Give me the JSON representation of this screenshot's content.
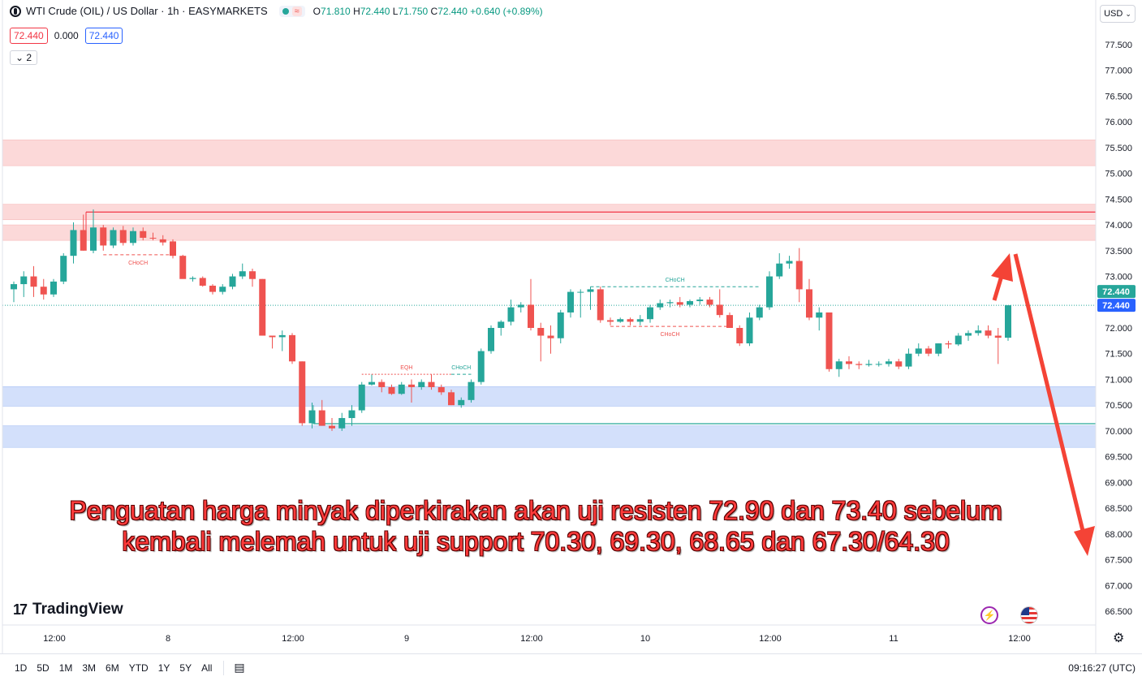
{
  "header": {
    "title": "WTI Crude (OIL) / US Dollar · 1h · EASYMARKETS",
    "ohlc": [
      {
        "k": "O",
        "v": "71.810"
      },
      {
        "k": "H",
        "v": "72.440"
      },
      {
        "k": "L",
        "v": "71.750"
      },
      {
        "k": "C",
        "v": "72.440"
      }
    ],
    "change": "+0.640 (+0.89%)",
    "bid": "72.440",
    "spread": "0.000",
    "ask": "72.440",
    "indicators_collapsed": "2"
  },
  "currency_button": "USD",
  "brand": "TradingView",
  "annotation": {
    "line1": "Penguatan harga minyak diperkirakan akan uji resisten 72.90 dan 73.40 sebelum",
    "line2": "kembali melemah untuk uji support 70.30, 69.30, 68.65 dan 67.30/64.30"
  },
  "bottom_bar": {
    "timeframes": [
      "1D",
      "5D",
      "1M",
      "3M",
      "6M",
      "YTD",
      "1Y",
      "5Y",
      "All"
    ],
    "clock": "09:16:27 (UTC)"
  },
  "colors": {
    "up": "#26a69a",
    "down": "#ef5350",
    "supply_zone": "#fcd9d9",
    "demand_zone": "#d3e0fb",
    "annotation": "#ff3b3b"
  },
  "chart_data": {
    "type": "candlestick",
    "y_axis": {
      "ticks": [
        "77.500",
        "77.000",
        "76.500",
        "76.000",
        "75.500",
        "75.000",
        "74.500",
        "74.000",
        "73.500",
        "73.000",
        "72.500",
        "72.000",
        "71.500",
        "71.000",
        "70.500",
        "70.000",
        "69.500",
        "69.000",
        "68.500",
        "68.000",
        "67.500",
        "67.000",
        "66.500"
      ],
      "range": [
        66.35,
        77.75
      ]
    },
    "x_axis": {
      "ticks": [
        "12:00",
        "8",
        "12:00",
        "9",
        "12:00",
        "10",
        "12:00",
        "11",
        "12:00"
      ]
    },
    "last_price_labels": [
      "72.440",
      "72.440"
    ],
    "candles": [
      [
        72.75,
        72.9,
        72.5,
        72.85
      ],
      [
        72.85,
        73.1,
        72.6,
        73.0
      ],
      [
        73.0,
        73.2,
        72.6,
        72.8
      ],
      [
        72.8,
        72.95,
        72.55,
        72.65
      ],
      [
        72.65,
        72.95,
        72.6,
        72.9
      ],
      [
        72.9,
        73.45,
        72.85,
        73.4
      ],
      [
        73.4,
        74.05,
        73.25,
        73.9
      ],
      [
        73.9,
        74.2,
        73.5,
        73.5
      ],
      [
        73.5,
        74.3,
        73.45,
        73.95
      ],
      [
        73.95,
        74.0,
        73.5,
        73.6
      ],
      [
        73.6,
        73.95,
        73.55,
        73.9
      ],
      [
        73.9,
        73.98,
        73.6,
        73.65
      ],
      [
        73.65,
        73.95,
        73.6,
        73.88
      ],
      [
        73.88,
        73.95,
        73.7,
        73.75
      ],
      [
        73.75,
        73.85,
        73.7,
        73.74
      ],
      [
        73.72,
        73.8,
        73.6,
        73.66
      ],
      [
        73.68,
        73.72,
        73.35,
        73.4
      ],
      [
        73.4,
        73.42,
        73.0,
        72.95
      ],
      [
        72.95,
        73.0,
        72.9,
        72.97
      ],
      [
        72.97,
        73.0,
        72.8,
        72.82
      ],
      [
        72.82,
        72.85,
        72.65,
        72.7
      ],
      [
        72.7,
        72.85,
        72.65,
        72.8
      ],
      [
        72.8,
        73.05,
        72.75,
        73.0
      ],
      [
        73.0,
        73.25,
        72.95,
        73.1
      ],
      [
        73.1,
        73.15,
        72.8,
        72.95
      ],
      [
        72.95,
        72.95,
        71.85,
        71.85
      ],
      [
        71.85,
        71.85,
        71.6,
        71.82
      ],
      [
        71.82,
        71.95,
        71.55,
        71.86
      ],
      [
        71.86,
        71.9,
        71.3,
        71.35
      ],
      [
        71.35,
        71.35,
        70.1,
        70.15
      ],
      [
        70.15,
        70.55,
        70.05,
        70.4
      ],
      [
        70.4,
        70.6,
        70.1,
        70.1
      ],
      [
        70.1,
        70.25,
        70.0,
        70.05
      ],
      [
        70.05,
        70.35,
        70.0,
        70.25
      ],
      [
        70.25,
        70.5,
        70.1,
        70.4
      ],
      [
        70.4,
        70.95,
        70.35,
        70.9
      ],
      [
        70.9,
        71.1,
        70.88,
        70.95
      ],
      [
        70.95,
        71.0,
        70.75,
        70.85
      ],
      [
        70.85,
        70.9,
        70.7,
        70.72
      ],
      [
        70.72,
        70.95,
        70.7,
        70.9
      ],
      [
        70.9,
        71.0,
        70.55,
        70.85
      ],
      [
        70.85,
        71.0,
        70.8,
        70.95
      ],
      [
        70.95,
        71.1,
        70.8,
        70.85
      ],
      [
        70.85,
        70.9,
        70.7,
        70.75
      ],
      [
        70.75,
        70.8,
        70.5,
        70.5
      ],
      [
        70.5,
        70.65,
        70.45,
        70.6
      ],
      [
        70.6,
        71.0,
        70.55,
        70.95
      ],
      [
        70.95,
        71.6,
        70.9,
        71.55
      ],
      [
        71.55,
        72.05,
        71.5,
        72.0
      ],
      [
        72.0,
        72.15,
        71.85,
        72.12
      ],
      [
        72.12,
        72.55,
        72.05,
        72.4
      ],
      [
        72.4,
        72.5,
        72.3,
        72.45
      ],
      [
        72.45,
        72.95,
        71.95,
        72.0
      ],
      [
        72.0,
        72.1,
        71.35,
        71.85
      ],
      [
        71.85,
        72.05,
        71.5,
        71.8
      ],
      [
        71.8,
        72.35,
        71.7,
        72.3
      ],
      [
        72.3,
        72.75,
        72.2,
        72.7
      ],
      [
        72.7,
        72.75,
        72.2,
        72.7
      ],
      [
        72.7,
        72.8,
        72.35,
        72.75
      ],
      [
        72.75,
        72.8,
        72.1,
        72.15
      ],
      [
        72.15,
        72.2,
        72.05,
        72.12
      ],
      [
        72.12,
        72.2,
        72.1,
        72.17
      ],
      [
        72.17,
        72.2,
        72.05,
        72.12
      ],
      [
        72.12,
        72.25,
        72.05,
        72.17
      ],
      [
        72.17,
        72.45,
        72.1,
        72.4
      ],
      [
        72.4,
        72.55,
        72.35,
        72.48
      ],
      [
        72.48,
        72.55,
        72.4,
        72.5
      ],
      [
        72.5,
        72.6,
        72.4,
        72.45
      ],
      [
        72.45,
        72.55,
        72.4,
        72.52
      ],
      [
        72.52,
        72.6,
        72.45,
        72.55
      ],
      [
        72.55,
        72.6,
        72.4,
        72.45
      ],
      [
        72.45,
        72.75,
        72.2,
        72.25
      ],
      [
        72.25,
        72.3,
        72.0,
        72.0
      ],
      [
        72.0,
        72.05,
        71.65,
        71.7
      ],
      [
        71.7,
        72.3,
        71.65,
        72.2
      ],
      [
        72.2,
        72.45,
        72.15,
        72.4
      ],
      [
        72.4,
        73.1,
        72.35,
        73.0
      ],
      [
        73.0,
        73.45,
        72.95,
        73.25
      ],
      [
        73.25,
        73.4,
        73.15,
        73.3
      ],
      [
        73.3,
        73.55,
        72.5,
        72.75
      ],
      [
        72.75,
        72.95,
        72.15,
        72.2
      ],
      [
        72.2,
        72.4,
        71.95,
        72.3
      ],
      [
        72.3,
        72.3,
        71.15,
        71.2
      ],
      [
        71.2,
        71.4,
        71.05,
        71.35
      ],
      [
        71.35,
        71.45,
        71.2,
        71.3
      ],
      [
        71.3,
        71.35,
        71.2,
        71.28
      ],
      [
        71.28,
        71.38,
        71.25,
        71.3
      ],
      [
        71.3,
        71.35,
        71.25,
        71.3
      ],
      [
        71.3,
        71.4,
        71.25,
        71.35
      ],
      [
        71.35,
        71.4,
        71.2,
        71.25
      ],
      [
        71.25,
        71.6,
        71.2,
        71.5
      ],
      [
        71.5,
        71.7,
        71.45,
        71.6
      ],
      [
        71.6,
        71.65,
        71.45,
        71.5
      ],
      [
        71.5,
        71.7,
        71.45,
        71.7
      ],
      [
        71.7,
        71.75,
        71.6,
        71.68
      ],
      [
        71.68,
        71.9,
        71.65,
        71.85
      ],
      [
        71.85,
        71.95,
        71.75,
        71.9
      ],
      [
        71.9,
        72.05,
        71.85,
        71.95
      ],
      [
        71.95,
        72.05,
        71.8,
        71.85
      ],
      [
        71.85,
        72.0,
        71.3,
        71.81
      ],
      [
        71.81,
        72.44,
        71.75,
        72.44
      ]
    ],
    "zones": [
      {
        "kind": "supply",
        "low": 75.15,
        "high": 75.65
      },
      {
        "kind": "supply",
        "low": 74.1,
        "high": 74.4
      },
      {
        "kind": "supply",
        "low": 73.7,
        "high": 74.0
      },
      {
        "kind": "demand",
        "low": 70.48,
        "high": 70.86
      },
      {
        "kind": "demand",
        "low": 69.68,
        "high": 70.1
      }
    ],
    "horizontal_lines": [
      {
        "price": 74.25,
        "color": "#f23645"
      },
      {
        "price": 70.14,
        "color": "#26a69a"
      }
    ],
    "structure_labels": [
      {
        "text": "CHoCH",
        "price": 73.42,
        "bar_from": 9,
        "bar_to": 16,
        "color": "#ef5350"
      },
      {
        "text": "EQH",
        "price": 71.1,
        "bar_from": 35,
        "bar_to": 44,
        "color": "#ef5350"
      },
      {
        "text": "CHoCH",
        "price": 71.1,
        "bar_from": 44,
        "bar_to": 46,
        "color": "#26a69a"
      },
      {
        "text": "CHoCH",
        "price": 72.8,
        "bar_from": 58,
        "bar_to": 75,
        "color": "#26a69a"
      },
      {
        "text": "CHoCH",
        "price": 72.03,
        "bar_from": 60,
        "bar_to": 72,
        "color": "#ef5350"
      }
    ]
  }
}
